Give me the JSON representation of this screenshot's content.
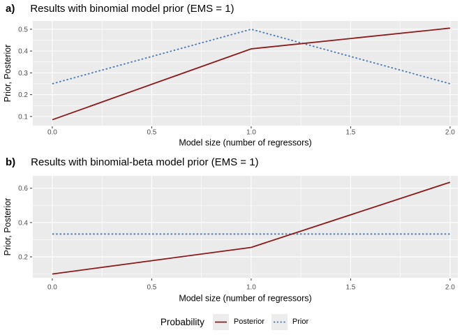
{
  "figure": {
    "background": "#FFFFFF"
  },
  "colors": {
    "panel_bg": "#EBEBEB",
    "grid_major": "#FFFFFF",
    "grid_minor": "#F5F5F5",
    "tick_mark": "#333333",
    "tick_label": "#4D4D4D",
    "axis_title": "#000000",
    "posterior": "#8B1A1A",
    "prior": "#4678B4"
  },
  "legend": {
    "title": "Probability",
    "items": [
      {
        "label": "Posterior",
        "color": "#8B1A1A",
        "style": "solid"
      },
      {
        "label": "Prior",
        "color": "#4678B4",
        "style": "dotted"
      }
    ]
  },
  "chart_data": [
    {
      "type": "line",
      "panel_label": "a)",
      "title": "Results with binomial model prior (EMS = 1)",
      "xlabel": "Model size (number of regressors)",
      "ylabel": "Prior, Posterior",
      "x": [
        0,
        1,
        2
      ],
      "series": [
        {
          "name": "Posterior",
          "values": [
            0.085,
            0.41,
            0.505
          ],
          "color": "#8B1A1A",
          "style": "solid"
        },
        {
          "name": "Prior",
          "values": [
            0.25,
            0.5,
            0.25
          ],
          "color": "#4678B4",
          "style": "dotted"
        }
      ],
      "xticks": {
        "values": [
          0,
          0.5,
          1,
          1.5,
          2
        ],
        "labels": [
          "0.0",
          "0.5",
          "1.0",
          "1.5",
          "2.0"
        ]
      },
      "yticks": {
        "values": [
          0.1,
          0.2,
          0.3,
          0.4,
          0.5
        ],
        "labels": [
          "0.1",
          "0.2",
          "0.3",
          "0.4",
          "0.5"
        ]
      },
      "x_minor": [
        0.25,
        0.75,
        1.25,
        1.75
      ],
      "y_minor": [
        0.15,
        0.25,
        0.35,
        0.45
      ],
      "xlim": [
        -0.098,
        2.039
      ],
      "ylim": [
        0.058,
        0.538
      ],
      "grid": true,
      "legend_position": "bottom"
    },
    {
      "type": "line",
      "panel_label": "b)",
      "title": "Results with binomial-beta model prior (EMS = 1)",
      "xlabel": "Model size (number of regressors)",
      "ylabel": "Prior, Posterior",
      "x": [
        0,
        1,
        2
      ],
      "series": [
        {
          "name": "Posterior",
          "values": [
            0.1,
            0.255,
            0.635
          ],
          "color": "#8B1A1A",
          "style": "solid"
        },
        {
          "name": "Prior",
          "values": [
            0.333,
            0.333,
            0.333
          ],
          "color": "#4678B4",
          "style": "dotted"
        }
      ],
      "xticks": {
        "values": [
          0,
          0.5,
          1,
          1.5,
          2
        ],
        "labels": [
          "0.0",
          "0.5",
          "1.0",
          "1.5",
          "2.0"
        ]
      },
      "yticks": {
        "values": [
          0.2,
          0.4,
          0.6
        ],
        "labels": [
          "0.2",
          "0.4",
          "0.6"
        ]
      },
      "x_minor": [
        0.25,
        0.75,
        1.25,
        1.75
      ],
      "y_minor": [
        0.1,
        0.3,
        0.5
      ],
      "xlim": [
        -0.098,
        2.039
      ],
      "ylim": [
        0.078,
        0.672
      ],
      "grid": true,
      "legend_position": "bottom"
    }
  ]
}
